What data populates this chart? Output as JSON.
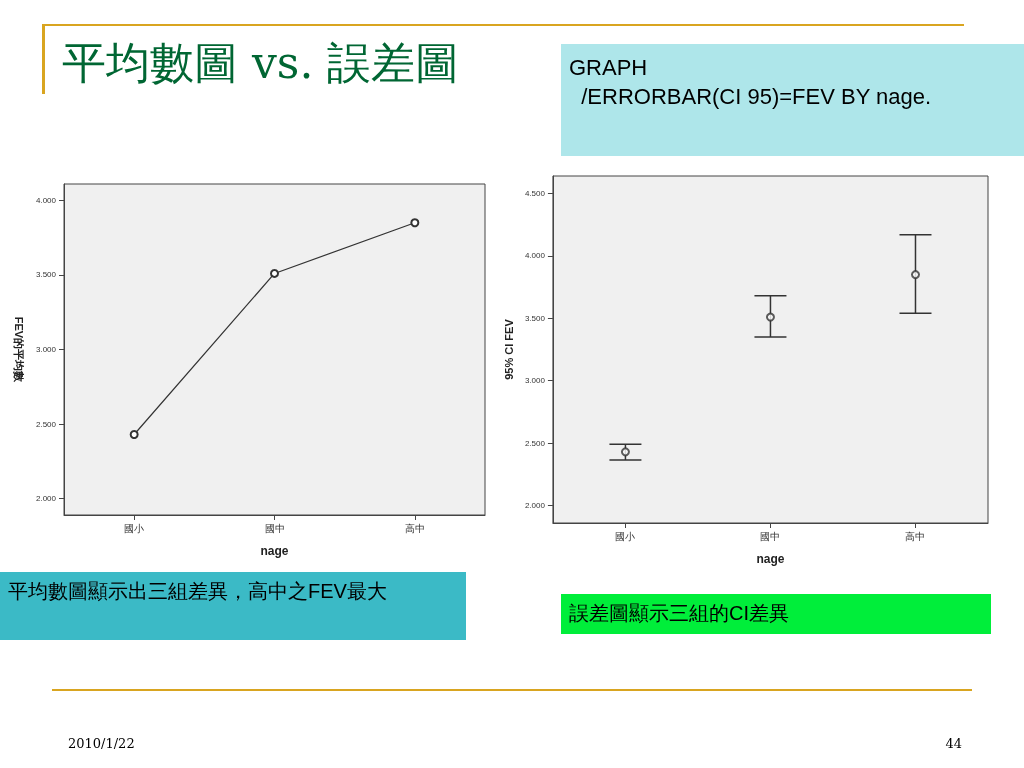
{
  "chart_data": [
    {
      "type": "line",
      "title": "平均數圖 vs. 誤差圖",
      "xlabel": "nage",
      "ylabel": "FEV的平均數",
      "categories": [
        "國小",
        "國中",
        "高中"
      ],
      "series": [
        {
          "color": "#333333",
          "values": [
            2.43,
            3.51,
            3.85
          ]
        }
      ],
      "ylim": [
        1.89,
        4.11
      ],
      "yticks": [
        {
          "value": 2,
          "label": "2.000"
        },
        {
          "value": 2.5,
          "label": "2.500"
        },
        {
          "value": 3,
          "label": "3.000"
        },
        {
          "value": 3.5,
          "label": "3.500"
        },
        {
          "value": 4,
          "label": "4.000"
        }
      ],
      "marker": "circle",
      "line_style": "solid",
      "grid": false,
      "annotations": [
        "平均數圖顯示出三組差異，高中之FEV最大",
        "2010/1/22",
        "44"
      ]
    },
    {
      "type": "scatter",
      "xlabel": "nage",
      "ylabel": "95% CI FEV",
      "categories": [
        "國小",
        "國中",
        "高中"
      ],
      "series": [
        {
          "color": "#333333",
          "values": [
            2.43,
            3.51,
            3.85
          ],
          "errors": [
            [
              2.365,
              2.49
            ],
            [
              3.35,
              3.68
            ],
            [
              3.54,
              4.17
            ]
          ]
        }
      ],
      "ylim": [
        1.86,
        4.64
      ],
      "yticks": [
        {
          "value": 2,
          "label": "2.000"
        },
        {
          "value": 2.5,
          "label": "2.500"
        },
        {
          "value": 3,
          "label": "3.000"
        },
        {
          "value": 3.5,
          "label": "3.500"
        },
        {
          "value": 4,
          "label": "4.000"
        },
        {
          "value": 4.5,
          "label": "4.500"
        }
      ],
      "marker": "circle",
      "grid": false,
      "annotations": [
        "GRAPH\n  /ERRORBAR(CI 95)=FEV BY nage.",
        "誤差圖顯示三組的CI差異"
      ]
    }
  ]
}
